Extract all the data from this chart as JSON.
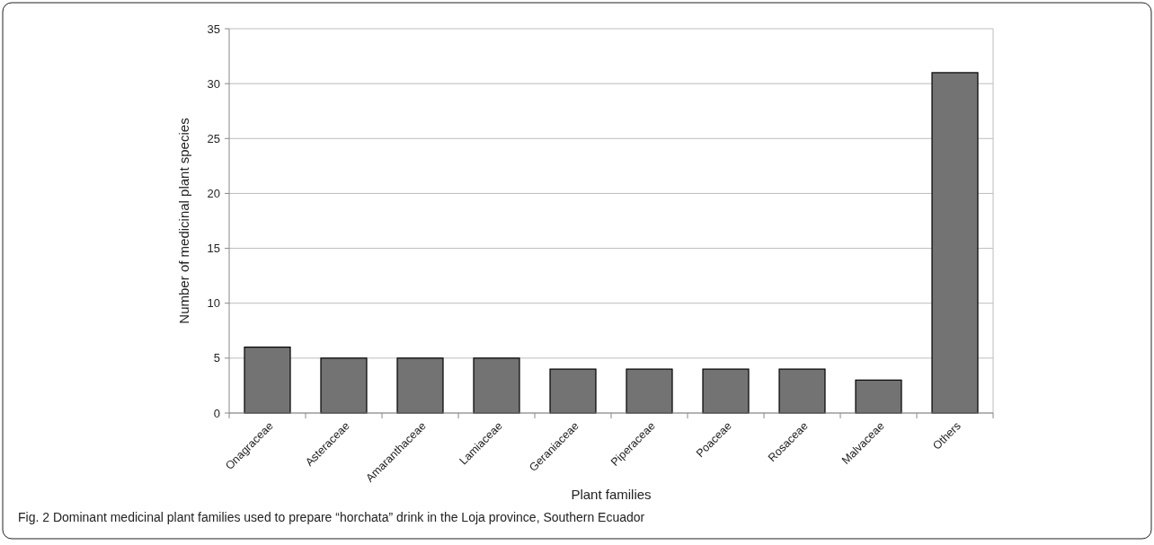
{
  "chart_data": {
    "type": "bar",
    "xlabel": "Plant families",
    "ylabel": "Number of medicinal plant species",
    "categories": [
      "Onagraceae",
      "Asteraceae",
      "Amaranthaceae",
      "Lamiaceae",
      "Geraniaceae",
      "Piperaceae",
      "Poaceae",
      "Rosaceae",
      "Malvaceae",
      "Others"
    ],
    "values": [
      6,
      5,
      5,
      5,
      4,
      4,
      4,
      4,
      3,
      31
    ],
    "color": "#737373",
    "ylim": [
      0,
      35
    ],
    "yticks": [
      0,
      5,
      10,
      15,
      20,
      25,
      30,
      35
    ],
    "grid": "y",
    "annotations": [
      "Fig. 2 Dominant medicinal plant families used to prepare “horchata” drink in the Loja province, Southern Ecuador"
    ]
  }
}
